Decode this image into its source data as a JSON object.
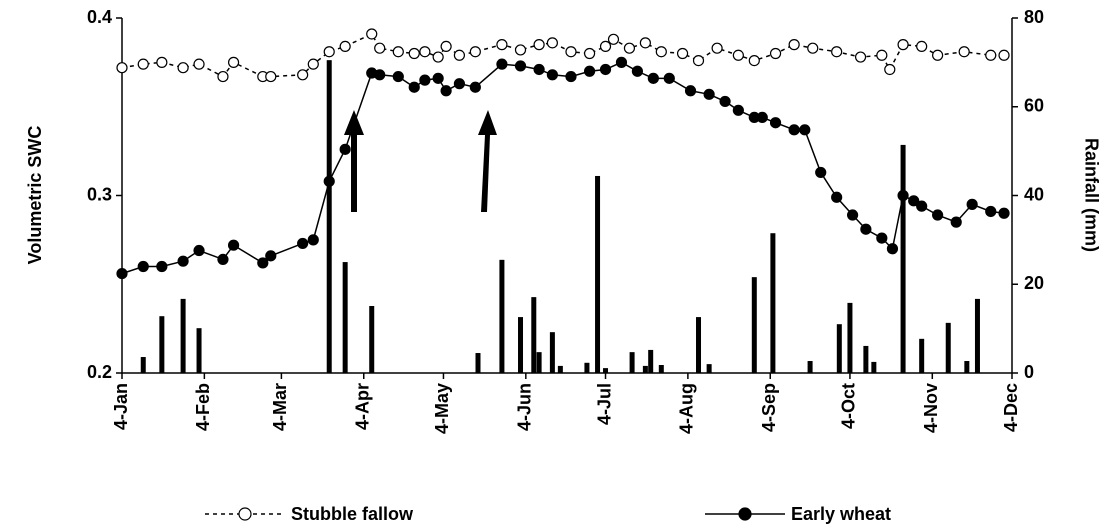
{
  "chart_data": {
    "type": "combo",
    "y_label": "Volumetric SWC",
    "y2_label": "Rainfall (mm)",
    "xlim": [
      0,
      335
    ],
    "xticks": [
      {
        "value": 0,
        "label": "4-Jan"
      },
      {
        "value": 31,
        "label": "4-Feb"
      },
      {
        "value": 60,
        "label": "4-Mar"
      },
      {
        "value": 91,
        "label": "4-Apr"
      },
      {
        "value": 121,
        "label": "4-May"
      },
      {
        "value": 152,
        "label": "4-Jun"
      },
      {
        "value": 182,
        "label": "4-Jul"
      },
      {
        "value": 213,
        "label": "4-Aug"
      },
      {
        "value": 244,
        "label": "4-Sep"
      },
      {
        "value": 274,
        "label": "4-Oct"
      },
      {
        "value": 305,
        "label": "4-Nov"
      },
      {
        "value": 335,
        "label": "4-Dec"
      }
    ],
    "ylim": [
      0.2,
      0.4
    ],
    "yticks": [
      0.2,
      0.3,
      0.4
    ],
    "y2lim": [
      0,
      80
    ],
    "y2ticks": [
      0,
      20,
      40,
      60,
      80
    ],
    "series": [
      {
        "name": "Stubble fallow",
        "type": "line",
        "color": "#000000",
        "marker": "open",
        "dashed": true,
        "x": [
          0,
          8,
          15,
          23,
          29,
          38,
          42,
          53,
          56,
          68,
          72,
          78,
          84,
          94,
          97,
          104,
          110,
          114,
          119,
          122,
          127,
          133,
          143,
          150,
          157,
          162,
          169,
          176,
          182,
          185,
          191,
          197,
          203,
          211,
          217,
          224,
          232,
          238,
          246,
          253,
          260,
          269,
          278,
          286,
          289,
          294,
          301,
          307,
          317,
          327,
          332
        ],
        "values": [
          0.372,
          0.374,
          0.375,
          0.372,
          0.374,
          0.367,
          0.375,
          0.367,
          0.367,
          0.368,
          0.374,
          0.381,
          0.384,
          0.391,
          0.383,
          0.381,
          0.38,
          0.381,
          0.378,
          0.384,
          0.379,
          0.381,
          0.385,
          0.382,
          0.385,
          0.386,
          0.381,
          0.38,
          0.384,
          0.388,
          0.383,
          0.386,
          0.381,
          0.38,
          0.376,
          0.383,
          0.379,
          0.376,
          0.38,
          0.385,
          0.383,
          0.381,
          0.378,
          0.379,
          0.371,
          0.385,
          0.384,
          0.379,
          0.381,
          0.379,
          0.379
        ]
      },
      {
        "name": "Early wheat",
        "type": "line",
        "color": "#000000",
        "marker": "filled",
        "dashed": false,
        "x": [
          0,
          8,
          15,
          23,
          29,
          38,
          42,
          53,
          56,
          68,
          72,
          78,
          84,
          94,
          97,
          104,
          110,
          114,
          119,
          122,
          127,
          133,
          143,
          150,
          157,
          162,
          169,
          176,
          182,
          188,
          194,
          200,
          206,
          214,
          221,
          227,
          232,
          238,
          241,
          246,
          253,
          257,
          263,
          269,
          275,
          280,
          286,
          290,
          294,
          298,
          301,
          307,
          314,
          320,
          327,
          332
        ],
        "values": [
          0.256,
          0.26,
          0.26,
          0.263,
          0.269,
          0.264,
          0.272,
          0.262,
          0.266,
          0.273,
          0.275,
          0.308,
          0.326,
          0.369,
          0.368,
          0.367,
          0.361,
          0.365,
          0.366,
          0.359,
          0.363,
          0.361,
          0.374,
          0.373,
          0.371,
          0.368,
          0.367,
          0.37,
          0.371,
          0.375,
          0.37,
          0.366,
          0.366,
          0.359,
          0.357,
          0.353,
          0.348,
          0.344,
          0.344,
          0.341,
          0.337,
          0.337,
          0.313,
          0.299,
          0.289,
          0.281,
          0.276,
          0.27,
          0.3,
          0.297,
          0.294,
          0.289,
          0.285,
          0.295,
          0.291,
          0.29
        ]
      },
      {
        "type": "bar",
        "axis": "y2",
        "color": "#000000",
        "x": [
          8,
          15,
          23,
          29,
          78,
          84,
          94,
          134,
          143,
          150,
          155,
          157,
          162,
          165,
          175,
          179,
          182,
          192,
          197,
          199,
          203,
          217,
          221,
          238,
          245,
          259,
          270,
          274,
          280,
          283,
          294,
          301,
          311,
          318,
          322
        ],
        "values": [
          3.6,
          12.8,
          16.7,
          10.1,
          70.5,
          25.0,
          15.1,
          4.5,
          25.5,
          12.6,
          17.1,
          4.7,
          9.2,
          1.6,
          2.3,
          44.4,
          1.1,
          4.7,
          1.6,
          5.2,
          1.8,
          12.6,
          2.0,
          21.6,
          31.5,
          2.7,
          11.0,
          15.8,
          6.1,
          2.5,
          51.4,
          7.7,
          11.3,
          2.7,
          16.7
        ]
      }
    ]
  }
}
